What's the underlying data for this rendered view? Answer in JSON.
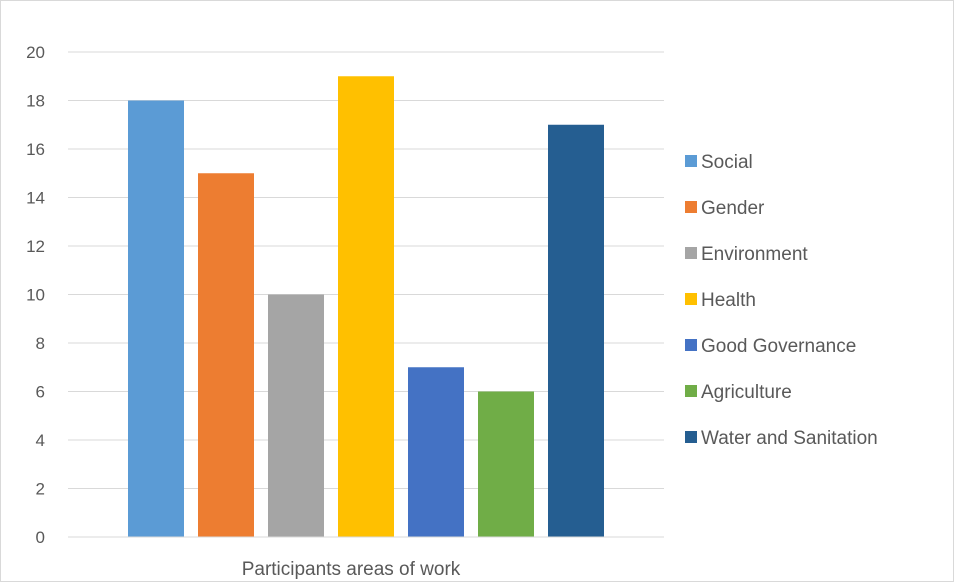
{
  "chart_data": {
    "type": "bar",
    "title": "",
    "xlabel": "Participants areas of work",
    "ylabel": "",
    "ylim": [
      0,
      20
    ],
    "ytick_step": 2,
    "yticks": [
      "0",
      "2",
      "4",
      "6",
      "8",
      "10",
      "12",
      "14",
      "16",
      "18",
      "20"
    ],
    "grid": true,
    "legend_position": "right",
    "categories": [
      "Participants areas of work"
    ],
    "series": [
      {
        "name": "Social",
        "values": [
          18
        ],
        "color": "#5b9bd5"
      },
      {
        "name": "Gender",
        "values": [
          15
        ],
        "color": "#ed7d31"
      },
      {
        "name": "Environment",
        "values": [
          10
        ],
        "color": "#a5a5a5"
      },
      {
        "name": "Health",
        "values": [
          19
        ],
        "color": "#ffc000"
      },
      {
        "name": "Good Governance",
        "values": [
          7
        ],
        "color": "#4472c4"
      },
      {
        "name": "Agriculture",
        "values": [
          6
        ],
        "color": "#70ad47"
      },
      {
        "name": "Water and Sanitation",
        "values": [
          17
        ],
        "color": "#255e91"
      }
    ]
  }
}
